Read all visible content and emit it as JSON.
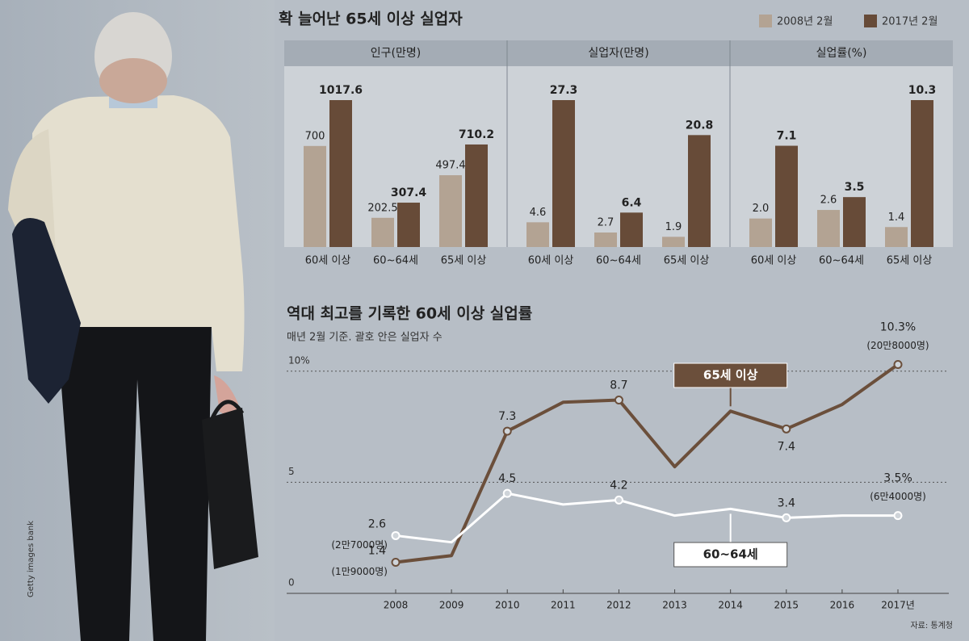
{
  "credit": "Getty images bank",
  "source": "자료: 통계청",
  "chart_data": [
    {
      "type": "bar",
      "title": "확 늘어난 65세 이상 실업자",
      "legend": [
        {
          "name": "2008년 2월",
          "color": "#b3a393"
        },
        {
          "name": "2017년 2월",
          "color": "#674b38"
        }
      ],
      "panels": [
        {
          "title": "인구(만명)",
          "categories": [
            "60세 이상",
            "60~64세",
            "65세 이상"
          ],
          "series": [
            {
              "values": [
                700,
                202.5,
                497.4
              ]
            },
            {
              "values": [
                1017.6,
                307.4,
                710.2
              ]
            }
          ]
        },
        {
          "title": "실업자(만명)",
          "categories": [
            "60세 이상",
            "60~64세",
            "65세 이상"
          ],
          "series": [
            {
              "values": [
                4.6,
                2.7,
                1.9
              ]
            },
            {
              "values": [
                27.3,
                6.4,
                20.8
              ]
            }
          ]
        },
        {
          "title": "실업률(%)",
          "categories": [
            "60세 이상",
            "60~64세",
            "65세 이상"
          ],
          "series": [
            {
              "values": [
                2.0,
                2.6,
                1.4
              ],
              "value_labels": [
                "2.0",
                "2.6",
                "1.4"
              ]
            },
            {
              "values": [
                7.1,
                3.5,
                10.3
              ]
            }
          ]
        }
      ]
    },
    {
      "type": "line",
      "title": "역대 최고를 기록한 60세 이상 실업률",
      "subtitle": "매년 2월 기준. 괄호 안은 실업자 수",
      "categories": [
        "2008",
        "2009",
        "2010",
        "2011",
        "2012",
        "2013",
        "2014",
        "2015",
        "2016",
        "2017년"
      ],
      "ylim": [
        0,
        10.5
      ],
      "yticks": [
        0,
        5,
        {
          "value": 10,
          "label": "10%"
        }
      ],
      "grid": true,
      "series": [
        {
          "name": "65세 이상",
          "color": "#6b4f3b",
          "values": [
            1.4,
            1.7,
            7.3,
            8.6,
            8.7,
            5.7,
            8.2,
            7.4,
            8.5,
            10.3
          ],
          "value_labels": [
            "1.4",
            null,
            "7.3",
            null,
            "8.7",
            null,
            null,
            "7.4",
            null,
            "10.3%"
          ],
          "count_labels": [
            "(1만9000명)",
            null,
            null,
            null,
            null,
            null,
            null,
            null,
            null,
            "(20만8000명)"
          ]
        },
        {
          "name": "60~64세",
          "color": "#ffffff",
          "values": [
            2.6,
            2.3,
            4.5,
            4.0,
            4.2,
            3.5,
            3.8,
            3.4,
            3.5,
            3.5
          ],
          "value_labels": [
            "2.6",
            null,
            "4.5",
            null,
            "4.2",
            null,
            null,
            "3.4",
            null,
            "3.5%"
          ],
          "count_labels": [
            "(2만7000명)",
            null,
            null,
            null,
            null,
            null,
            null,
            null,
            null,
            "(6만4000명)"
          ]
        }
      ]
    }
  ]
}
